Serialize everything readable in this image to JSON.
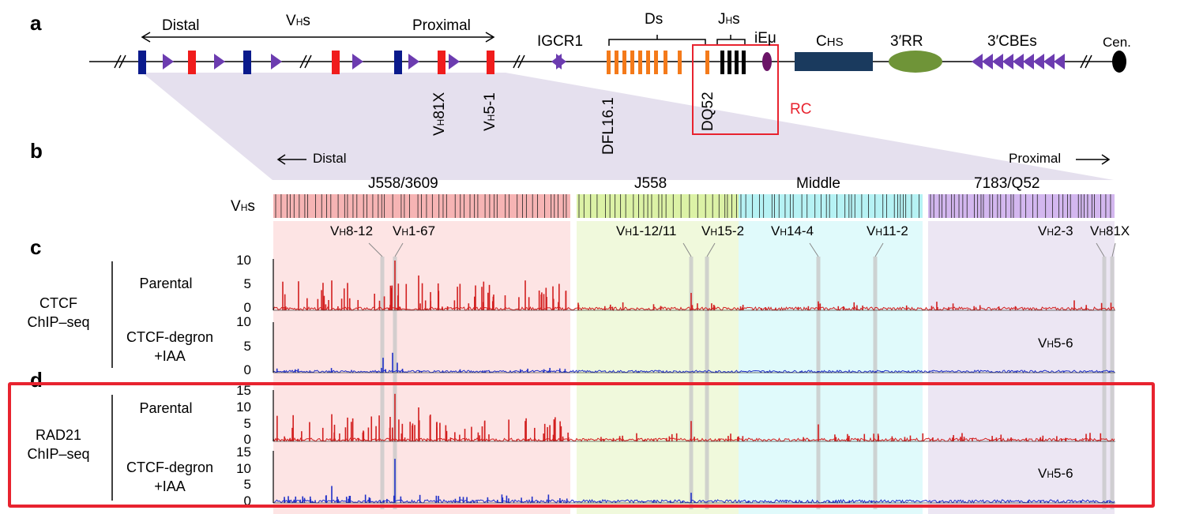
{
  "panels": {
    "a": "a",
    "b": "b",
    "c": "c",
    "d": "d"
  },
  "locus": {
    "distal": "Distal",
    "vhs": "V",
    "vhs_sub": "H",
    "vhs_suffix": "s",
    "proximal": "Proximal",
    "igcr1": "IGCR1",
    "ds": "Ds",
    "jhs": "J",
    "jhs_sub": "H",
    "jhs_suffix": "s",
    "iemu": "iEμ",
    "chs": "C",
    "chs_suffix": "HS",
    "rr": "3′RR",
    "cbes": "3′CBEs",
    "cen": "Cen.",
    "vh81x": "81X",
    "vh51": "5-1",
    "vh_prefix": "V",
    "vh_sub": "H",
    "dfl161": "DFL16.1",
    "dq52": "DQ52",
    "rc": "RC"
  },
  "domains": {
    "distal": "Distal",
    "proximal": "Proximal",
    "vhs": "V",
    "vhs_sub": "H",
    "vhs_suffix": "s",
    "names": [
      "J558/3609",
      "J558",
      "Middle",
      "7183/Q52"
    ],
    "colors": [
      "#f6b4b4",
      "#dcf2a6",
      "#b6f2f4",
      "#d3b7ef"
    ]
  },
  "markers": [
    {
      "pre": "V",
      "sub": "H",
      "post": "8-12"
    },
    {
      "pre": "V",
      "sub": "H",
      "post": "1-67"
    },
    {
      "pre": "V",
      "sub": "H",
      "post": "1-12/11"
    },
    {
      "pre": "V",
      "sub": "H",
      "post": "15-2"
    },
    {
      "pre": "V",
      "sub": "H",
      "post": "14-4"
    },
    {
      "pre": "V",
      "sub": "H",
      "post": "11-2"
    },
    {
      "pre": "V",
      "sub": "H",
      "post": "2-3"
    },
    {
      "pre": "V",
      "sub": "H",
      "post": "81X"
    }
  ],
  "tracks": {
    "ctcf_label_1": "CTCF",
    "ctcf_label_2": "ChIP–seq",
    "rad21_label_1": "RAD21",
    "rad21_label_2": "ChIP–seq",
    "parental": "Parental",
    "degron_1": "CTCF-degron",
    "degron_2": "+IAA",
    "vh56_pre": "V",
    "vh56_sub": "H",
    "vh56_post": "5-6",
    "ctcf_ticks": [
      "10",
      "5",
      "0",
      "10",
      "5",
      "0"
    ],
    "rad21_ticks": [
      "15",
      "10",
      "5",
      "0",
      "15",
      "10",
      "5",
      "0"
    ],
    "parental_color": "#d21f1f",
    "degron_color": "#1f2fc8"
  }
}
